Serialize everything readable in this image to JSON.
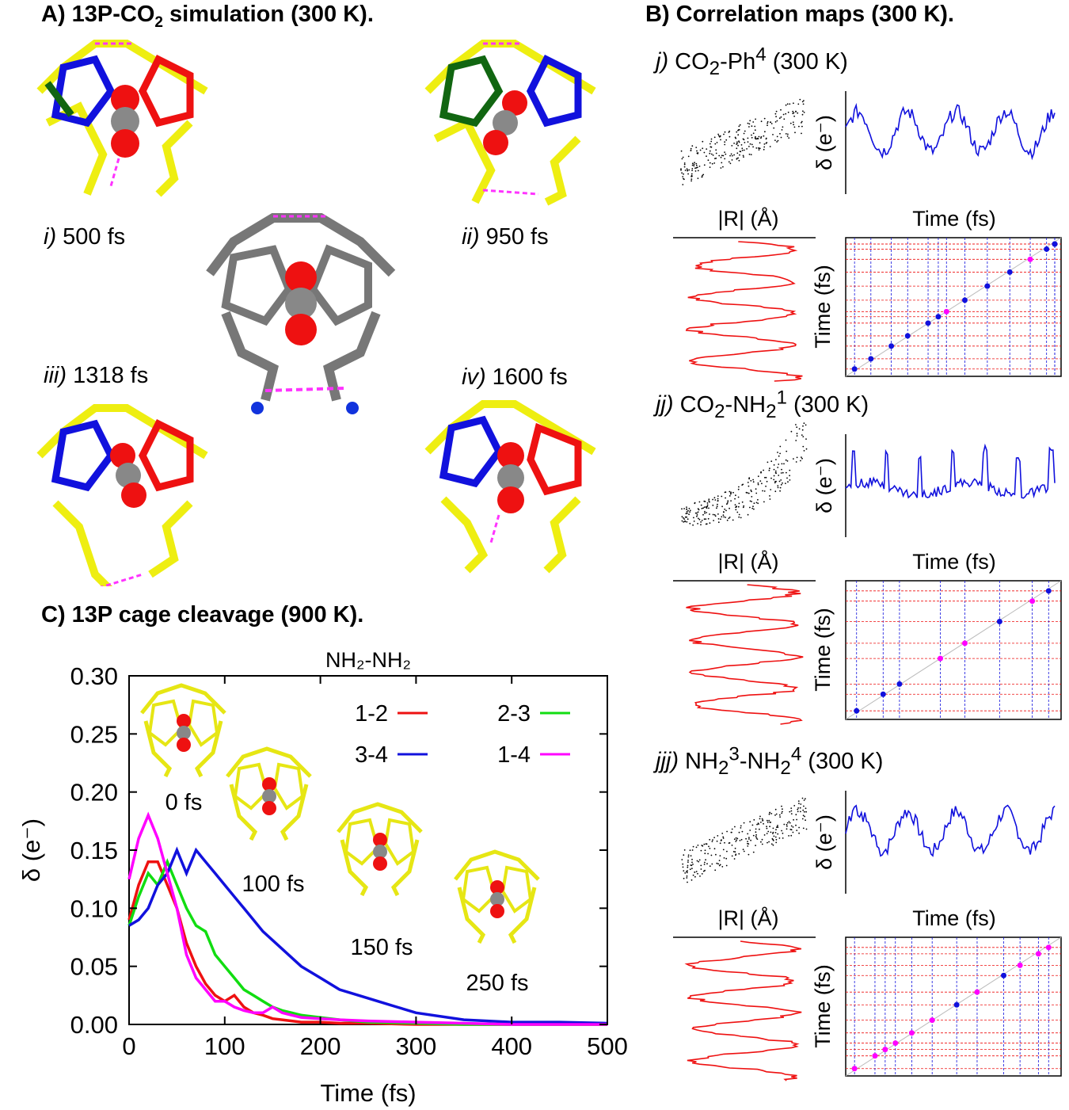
{
  "panelA": {
    "title_pre": "A) 13P-CO",
    "title_sub": "2",
    "title_post": " simulation (300 K).",
    "snapshots": [
      {
        "roman": "i)",
        "time": "500 fs"
      },
      {
        "roman": "ii)",
        "time": "950 fs"
      },
      {
        "roman": "iii)",
        "time": "1318 fs"
      },
      {
        "roman": "iv)",
        "time": "1600 fs"
      }
    ]
  },
  "panelB": {
    "title": "B) Correlation maps (300 K).",
    "maps": [
      {
        "roman": "j)",
        "label_html": "CO<sub>2</sub>-Ph<sup>4</sup> (300 K)",
        "xlabel_top": "Time (fs)",
        "ylabel_top": "δ (e⁻)",
        "xlabel_left": "|R| (Å)",
        "ylabel_grid": "Time (fs)"
      },
      {
        "roman": "jj)",
        "label_html": "CO<sub>2</sub>-NH<sub>2</sub><sup>1</sup> (300 K)",
        "xlabel_top": "Time (fs)",
        "ylabel_top": "δ (e⁻)",
        "xlabel_left": "|R| (Å)",
        "ylabel_grid": "Time (fs)"
      },
      {
        "roman": "jjj)",
        "label_html": "NH<sub>2</sub><sup>3</sup>-NH<sub>2</sub><sup>4</sup> (300 K)",
        "xlabel_top": "Time (fs)",
        "ylabel_top": "δ (e⁻)",
        "xlabel_left": "|R| (Å)",
        "ylabel_grid": "Time (fs)"
      }
    ]
  },
  "panelC": {
    "title": "C) 13P cage cleavage (900 K).",
    "inset_labels": [
      "0 fs",
      "100 fs",
      "150 fs",
      "250 fs"
    ]
  },
  "colors": {
    "red": "#ee1111",
    "green": "#11dd11",
    "blue": "#1111dd",
    "magenta": "#ff00ff",
    "yellow": "#eeee11"
  },
  "chart_data": {
    "type": "line",
    "title": "NH₂-NH₂",
    "xlabel": "Time (fs)",
    "ylabel": "δ (e⁻)",
    "xlim": [
      0,
      500
    ],
    "ylim": [
      0,
      0.3
    ],
    "xticks": [
      "0",
      "100",
      "200",
      "300",
      "400",
      "500"
    ],
    "yticks": [
      "0.00",
      "0.05",
      "0.10",
      "0.15",
      "0.20",
      "0.25",
      "0.30"
    ],
    "legend_position": "top-right",
    "series": [
      {
        "name": "1-2",
        "color": "#ee1111",
        "x": [
          0,
          10,
          20,
          30,
          40,
          50,
          60,
          70,
          80,
          90,
          100,
          110,
          120,
          130,
          140,
          150,
          160,
          170,
          180,
          200,
          220,
          250,
          300,
          350,
          400,
          450,
          500
        ],
        "y": [
          0.09,
          0.12,
          0.14,
          0.14,
          0.12,
          0.1,
          0.07,
          0.05,
          0.035,
          0.025,
          0.02,
          0.025,
          0.015,
          0.01,
          0.008,
          0.005,
          0.004,
          0.003,
          0.002,
          0.002,
          0.001,
          0.001,
          0.0,
          0.0,
          0.0,
          0.0,
          0.0
        ]
      },
      {
        "name": "2-3",
        "color": "#11dd11",
        "x": [
          0,
          10,
          20,
          30,
          40,
          50,
          60,
          70,
          80,
          90,
          100,
          110,
          120,
          130,
          140,
          150,
          160,
          170,
          180,
          200,
          220,
          250,
          300,
          350,
          400,
          450,
          500
        ],
        "y": [
          0.085,
          0.11,
          0.13,
          0.12,
          0.14,
          0.12,
          0.1,
          0.085,
          0.08,
          0.06,
          0.05,
          0.04,
          0.03,
          0.025,
          0.02,
          0.015,
          0.012,
          0.01,
          0.008,
          0.006,
          0.004,
          0.002,
          0.001,
          0.0,
          0.0,
          0.0,
          0.0
        ]
      },
      {
        "name": "3-4",
        "color": "#1111dd",
        "x": [
          0,
          10,
          20,
          30,
          40,
          50,
          60,
          70,
          80,
          90,
          100,
          110,
          120,
          140,
          160,
          180,
          200,
          220,
          240,
          260,
          280,
          300,
          350,
          400,
          450,
          500
        ],
        "y": [
          0.085,
          0.09,
          0.1,
          0.12,
          0.13,
          0.15,
          0.13,
          0.15,
          0.14,
          0.13,
          0.12,
          0.11,
          0.1,
          0.08,
          0.065,
          0.05,
          0.04,
          0.03,
          0.025,
          0.02,
          0.015,
          0.01,
          0.004,
          0.002,
          0.002,
          0.001
        ]
      },
      {
        "name": "1-4",
        "color": "#ff00ff",
        "x": [
          0,
          10,
          20,
          30,
          40,
          50,
          60,
          70,
          80,
          90,
          100,
          110,
          120,
          130,
          140,
          150,
          160,
          170,
          180,
          200,
          220,
          250,
          300,
          350,
          400,
          450,
          500
        ],
        "y": [
          0.125,
          0.16,
          0.18,
          0.16,
          0.13,
          0.1,
          0.06,
          0.04,
          0.03,
          0.02,
          0.02,
          0.015,
          0.012,
          0.01,
          0.01,
          0.015,
          0.01,
          0.008,
          0.006,
          0.005,
          0.004,
          0.003,
          0.002,
          0.001,
          0.0,
          0.0,
          0.0
        ]
      }
    ]
  }
}
